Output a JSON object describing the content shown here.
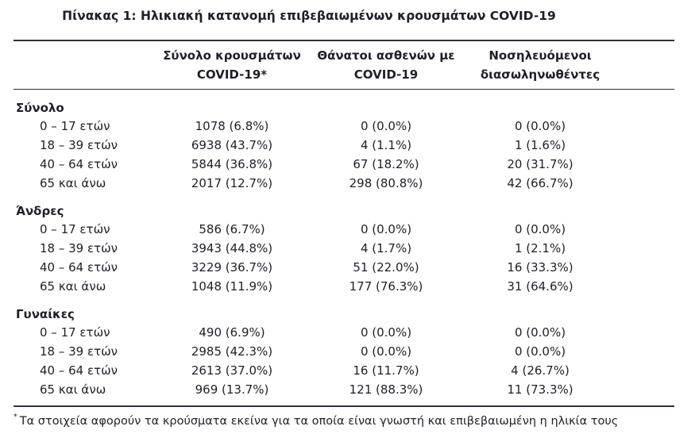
{
  "colors": {
    "background": "#ffffff",
    "text": "#1f1f29",
    "rule": "#30303a"
  },
  "title": "Πίνακας 1: Ηλικιακή κατανομή επιβεβαιωμένων κρουσμάτων COVID-19",
  "table": {
    "col_headers": [
      {
        "line1": "Σύνολο κρουσμάτων",
        "line2": "COVID-19*"
      },
      {
        "line1": "Θάνατοι ασθενών με",
        "line2": "COVID-19"
      },
      {
        "line1": "Νοσηλευόμενοι",
        "line2": "διασωληνωθέντες"
      }
    ],
    "sections": [
      {
        "label": "Σύνολο",
        "rows": [
          {
            "label": "0 – 17 ετών",
            "cases": "1078 (6.8%)",
            "deaths": "0 (0.0%)",
            "intubated": "0 (0.0%)"
          },
          {
            "label": "18 – 39 ετών",
            "cases": "6938 (43.7%)",
            "deaths": "4 (1.1%)",
            "intubated": "1 (1.6%)"
          },
          {
            "label": "40 – 64 ετών",
            "cases": "5844 (36.8%)",
            "deaths": "67 (18.2%)",
            "intubated": "20 (31.7%)"
          },
          {
            "label": "65 και άνω",
            "cases": "2017 (12.7%)",
            "deaths": "298 (80.8%)",
            "intubated": "42 (66.7%)"
          }
        ]
      },
      {
        "label": "Άνδρες",
        "rows": [
          {
            "label": "0 – 17 ετών",
            "cases": "586 (6.7%)",
            "deaths": "0 (0.0%)",
            "intubated": "0 (0.0%)"
          },
          {
            "label": "18 – 39 ετών",
            "cases": "3943 (44.8%)",
            "deaths": "4 (1.7%)",
            "intubated": "1 (2.1%)"
          },
          {
            "label": "40 – 64 ετών",
            "cases": "3229 (36.7%)",
            "deaths": "51 (22.0%)",
            "intubated": "16 (33.3%)"
          },
          {
            "label": "65 και άνω",
            "cases": "1048 (11.9%)",
            "deaths": "177 (76.3%)",
            "intubated": "31 (64.6%)"
          }
        ]
      },
      {
        "label": "Γυναίκες",
        "rows": [
          {
            "label": "0 – 17 ετών",
            "cases": "490 (6.9%)",
            "deaths": "0 (0.0%)",
            "intubated": "0 (0.0%)"
          },
          {
            "label": "18 – 39 ετών",
            "cases": "2985 (42.3%)",
            "deaths": "0 (0.0%)",
            "intubated": "0 (0.0%)"
          },
          {
            "label": "40 – 64 ετών",
            "cases": "2613 (37.0%)",
            "deaths": "16 (11.7%)",
            "intubated": "4 (26.7%)"
          },
          {
            "label": "65 και άνω",
            "cases": "969 (13.7%)",
            "deaths": "121 (88.3%)",
            "intubated": "11 (73.3%)"
          }
        ]
      }
    ]
  },
  "footnote": {
    "marker": "*",
    "text": "Τα στοιχεία αφορούν τα κρούσματα εκείνα για τα οποία είναι γνωστή και επιβεβαιωμένη η ηλικία τους"
  }
}
